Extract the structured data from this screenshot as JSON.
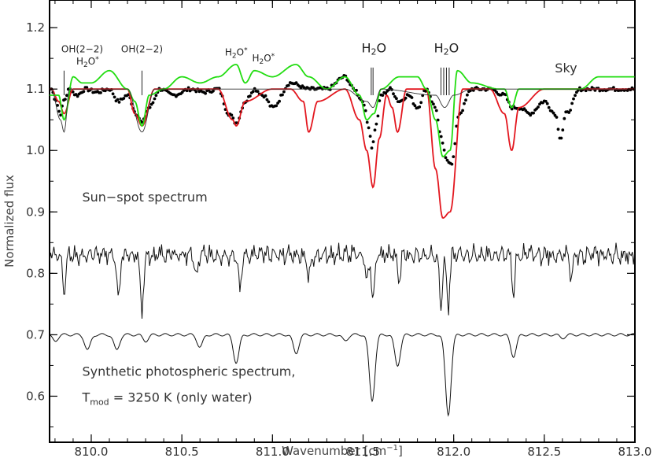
{
  "chart_data": {
    "type": "line",
    "title": "",
    "xlabel": "Wavenumber [cm",
    "xlabel_superscript": "−1",
    "xlabel_close": "]",
    "ylabel": "Normalized flux",
    "xlim": [
      809.77,
      813.0
    ],
    "ylim": [
      0.525,
      1.245
    ],
    "x_ticks": [
      810.0,
      810.5,
      811.0,
      811.5,
      812.0,
      812.5,
      813.0
    ],
    "x_tick_labels": [
      "810.0",
      "810.5",
      "811.0",
      "811.5",
      "812.0",
      "812.5",
      "813.0"
    ],
    "y_ticks": [
      0.6,
      0.7,
      0.8,
      0.9,
      1.0,
      1.1,
      1.2
    ],
    "y_tick_labels": [
      "0.6",
      "0.7",
      "0.8",
      "0.9",
      "1.0",
      "1.1",
      "1.2"
    ],
    "grid": false,
    "colors": {
      "observed": "#000000",
      "red_model": "#e3171f",
      "green_model": "#22dd11",
      "thin": "#333333"
    },
    "series": [
      {
        "style": "black-dots",
        "color": "#000000",
        "x": [
          809.78,
          809.8,
          809.83,
          809.85,
          809.88,
          809.92,
          809.97,
          810.03,
          810.1,
          810.15,
          810.2,
          810.25,
          810.28,
          810.32,
          810.38,
          810.45,
          810.55,
          810.62,
          810.7,
          810.76,
          810.8,
          810.85,
          810.9,
          810.95,
          811.0,
          811.1,
          811.2,
          811.3,
          811.4,
          811.45,
          811.5,
          811.53,
          811.55,
          811.57,
          811.6,
          811.65,
          811.7,
          811.75,
          811.8,
          811.85,
          811.9,
          811.93,
          811.96,
          811.99,
          812.03,
          812.1,
          812.2,
          812.28,
          812.32,
          812.36,
          812.42,
          812.5,
          812.56,
          812.59,
          812.62,
          812.7,
          812.8,
          812.9,
          813.0
        ],
        "values": [
          1.1,
          1.085,
          1.06,
          1.082,
          1.1,
          1.09,
          1.1,
          1.095,
          1.1,
          1.08,
          1.09,
          1.06,
          1.045,
          1.07,
          1.1,
          1.09,
          1.1,
          1.095,
          1.1,
          1.06,
          1.045,
          1.08,
          1.1,
          1.09,
          1.07,
          1.11,
          1.1,
          1.1,
          1.12,
          1.1,
          1.08,
          1.04,
          1.005,
          1.04,
          1.09,
          1.1,
          1.08,
          1.09,
          1.07,
          1.1,
          1.07,
          1.02,
          0.985,
          0.98,
          1.06,
          1.1,
          1.1,
          1.09,
          1.07,
          1.07,
          1.06,
          1.08,
          1.06,
          1.02,
          1.06,
          1.1,
          1.1,
          1.1,
          1.1
        ]
      },
      {
        "style": "red-line",
        "color": "#e3171f",
        "x": [
          809.78,
          809.82,
          809.85,
          809.9,
          810.0,
          810.1,
          810.2,
          810.24,
          810.28,
          810.35,
          810.5,
          810.7,
          810.78,
          810.8,
          810.85,
          811.0,
          811.1,
          811.17,
          811.2,
          811.25,
          811.4,
          811.48,
          811.52,
          811.555,
          811.59,
          811.63,
          811.66,
          811.69,
          811.74,
          811.85,
          811.9,
          811.94,
          811.98,
          812.05,
          812.2,
          812.28,
          812.32,
          812.36,
          812.5,
          813.0
        ],
        "values": [
          1.1,
          1.08,
          1.06,
          1.1,
          1.1,
          1.1,
          1.1,
          1.06,
          1.04,
          1.1,
          1.1,
          1.1,
          1.05,
          1.04,
          1.08,
          1.1,
          1.1,
          1.08,
          1.03,
          1.08,
          1.1,
          1.05,
          1.0,
          0.94,
          1.02,
          1.09,
          1.07,
          1.03,
          1.1,
          1.1,
          0.97,
          0.89,
          0.9,
          1.1,
          1.1,
          1.06,
          1.0,
          1.07,
          1.1,
          1.1
        ]
      },
      {
        "style": "green-line",
        "color": "#22dd11",
        "x": [
          809.78,
          809.82,
          809.85,
          809.9,
          809.95,
          810.0,
          810.1,
          810.2,
          810.24,
          810.28,
          810.32,
          810.4,
          810.5,
          810.6,
          810.7,
          810.8,
          810.85,
          810.9,
          811.0,
          811.13,
          811.2,
          811.3,
          811.4,
          811.48,
          811.52,
          811.56,
          811.6,
          811.7,
          811.8,
          811.85,
          811.9,
          811.94,
          811.98,
          812.02,
          812.1,
          812.25,
          812.28,
          812.32,
          812.36,
          812.5,
          812.7,
          812.8,
          813.0
        ],
        "values": [
          1.09,
          1.09,
          1.05,
          1.12,
          1.11,
          1.11,
          1.13,
          1.1,
          1.08,
          1.04,
          1.09,
          1.1,
          1.12,
          1.11,
          1.12,
          1.14,
          1.11,
          1.13,
          1.12,
          1.14,
          1.12,
          1.1,
          1.12,
          1.09,
          1.05,
          1.06,
          1.1,
          1.12,
          1.12,
          1.1,
          1.05,
          0.99,
          1.0,
          1.13,
          1.11,
          1.1,
          1.1,
          1.07,
          1.1,
          1.1,
          1.1,
          1.12,
          1.12
        ]
      },
      {
        "style": "thin-line",
        "color": "#333333",
        "x": [
          809.78,
          809.83,
          809.85,
          809.88,
          810.0,
          810.2,
          810.28,
          810.35,
          810.5,
          811.0,
          811.4,
          811.52,
          811.555,
          811.6,
          811.9,
          811.95,
          812.0,
          812.1,
          813.0
        ],
        "values": [
          1.1,
          1.05,
          1.03,
          1.1,
          1.1,
          1.1,
          1.03,
          1.1,
          1.1,
          1.1,
          1.1,
          1.08,
          1.07,
          1.1,
          1.09,
          1.07,
          1.09,
          1.1,
          1.1
        ]
      },
      {
        "style": "sunspot",
        "color": "#111111",
        "baseline": 0.83,
        "dips": [
          [
            809.85,
            0.77
          ],
          [
            810.15,
            0.76
          ],
          [
            810.28,
            0.74
          ],
          [
            810.58,
            0.79
          ],
          [
            810.82,
            0.77
          ],
          [
            811.2,
            0.79
          ],
          [
            811.52,
            0.79
          ],
          [
            811.555,
            0.75
          ],
          [
            811.7,
            0.79
          ],
          [
            811.93,
            0.75
          ],
          [
            811.97,
            0.745
          ],
          [
            812.33,
            0.77
          ],
          [
            812.65,
            0.79
          ]
        ]
      },
      {
        "style": "synthetic",
        "color": "#111111",
        "baseline": 0.7,
        "dips": [
          [
            809.8,
            0.69
          ],
          [
            809.98,
            0.675
          ],
          [
            810.14,
            0.675
          ],
          [
            810.3,
            0.69
          ],
          [
            810.6,
            0.68
          ],
          [
            810.8,
            0.655
          ],
          [
            811.13,
            0.67
          ],
          [
            811.4,
            0.69
          ],
          [
            811.55,
            0.593
          ],
          [
            811.69,
            0.65
          ],
          [
            811.97,
            0.57
          ],
          [
            812.33,
            0.665
          ],
          [
            812.6,
            0.695
          ]
        ]
      }
    ],
    "annotations": [
      {
        "text": "OH(2−2)",
        "x": 809.95,
        "y": 1.16,
        "size": "small"
      },
      {
        "text": "H2O*",
        "x": 809.98,
        "y": 1.14,
        "size": "small"
      },
      {
        "text": "OH(2−2)",
        "x": 810.28,
        "y": 1.16,
        "size": "small"
      },
      {
        "text": "H2O*",
        "x": 810.8,
        "y": 1.155,
        "size": "small"
      },
      {
        "text": "H2O*",
        "x": 810.95,
        "y": 1.145,
        "size": "small"
      },
      {
        "text": "H2O",
        "x": 811.56,
        "y": 1.16,
        "size": "large"
      },
      {
        "text": "H2O",
        "x": 811.96,
        "y": 1.16,
        "size": "large"
      },
      {
        "text": "Sky",
        "x": 812.62,
        "y": 1.127,
        "size": "medium"
      }
    ],
    "markers": [
      {
        "x": 809.85,
        "y0": 1.09,
        "y1": 1.13
      },
      {
        "x": 810.28,
        "y0": 1.09,
        "y1": 1.13
      },
      {
        "x": 811.545,
        "y0": 1.09,
        "y1": 1.135
      },
      {
        "x": 811.555,
        "y0": 1.09,
        "y1": 1.135
      },
      {
        "x": 811.93,
        "y0": 1.09,
        "y1": 1.135
      },
      {
        "x": 811.945,
        "y0": 1.09,
        "y1": 1.135
      },
      {
        "x": 811.96,
        "y0": 1.09,
        "y1": 1.135
      },
      {
        "x": 811.975,
        "y0": 1.09,
        "y1": 1.135
      }
    ],
    "labels": {
      "sunspot": "Sun−spot spectrum",
      "synthetic_line1": "Synthetic photospheric spectrum,",
      "synthetic_line2_prefix": "T",
      "synthetic_line2_sub": "mod",
      "synthetic_line2_rest": " = 3250 K (only water)"
    }
  }
}
